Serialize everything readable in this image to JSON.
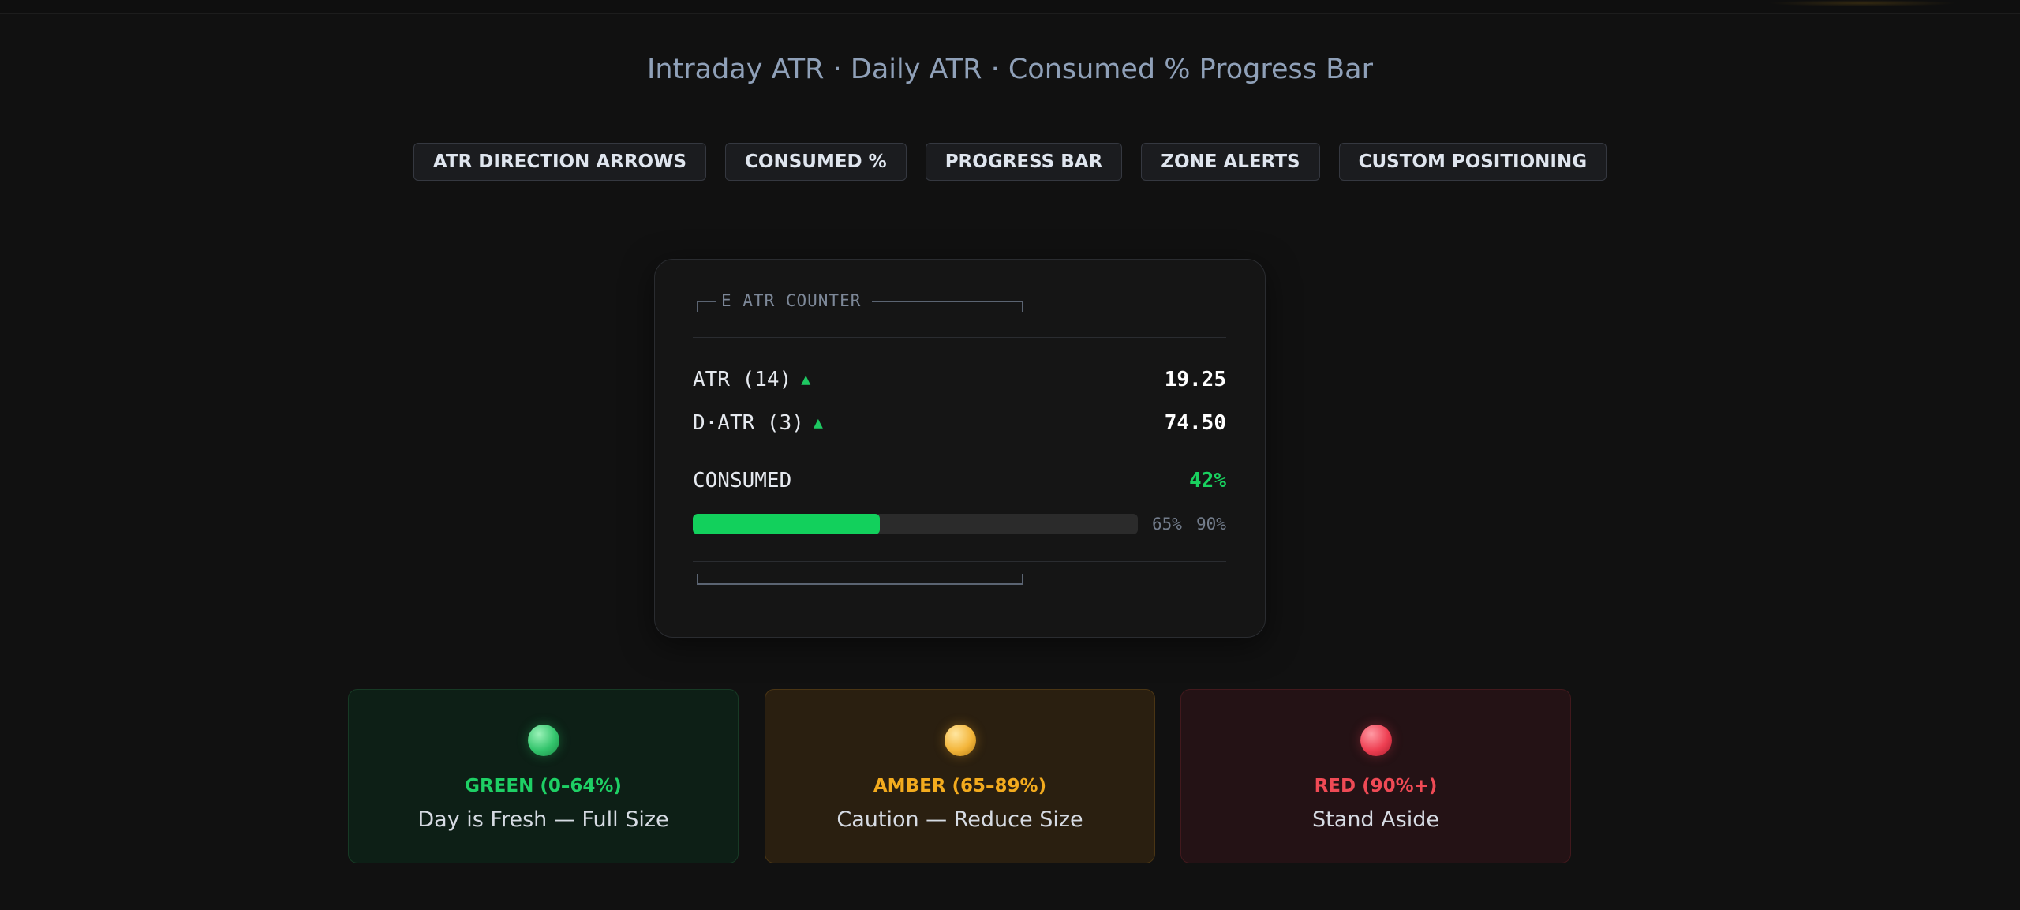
{
  "subtitle": "Intraday ATR · Daily ATR · Consumed % Progress Bar",
  "features": [
    "ATR DIRECTION ARROWS",
    "CONSUMED %",
    "PROGRESS BAR",
    "ZONE ALERTS",
    "CUSTOM POSITIONING"
  ],
  "counter": {
    "title": "E ATR COUNTER",
    "atr": {
      "label": "ATR (14)",
      "arrow": "▲",
      "value": "19.25"
    },
    "datr": {
      "label": "D·ATR (3)",
      "arrow": "▲",
      "value": "74.50"
    },
    "consumed": {
      "label": "CONSUMED",
      "value": "42%",
      "fill_fraction": 0.42,
      "threshold_amber": "65%",
      "threshold_red": "90%",
      "fill_color": "#12d05c"
    }
  },
  "zones": [
    {
      "label": "GREEN (0–64%)",
      "description": "Day is Fresh — Full Size",
      "color": "#1ed065"
    },
    {
      "label": "AMBER (65–89%)",
      "description": "Caution — Reduce Size",
      "color": "#f3ab1e"
    },
    {
      "label": "RED (90%+)",
      "description": "Stand Aside",
      "color": "#ef4a55"
    }
  ],
  "icons": {
    "atr_direction": "up-triangle-icon",
    "zone_green": "green-orb-icon",
    "zone_amber": "amber-orb-icon",
    "zone_red": "red-orb-icon"
  }
}
